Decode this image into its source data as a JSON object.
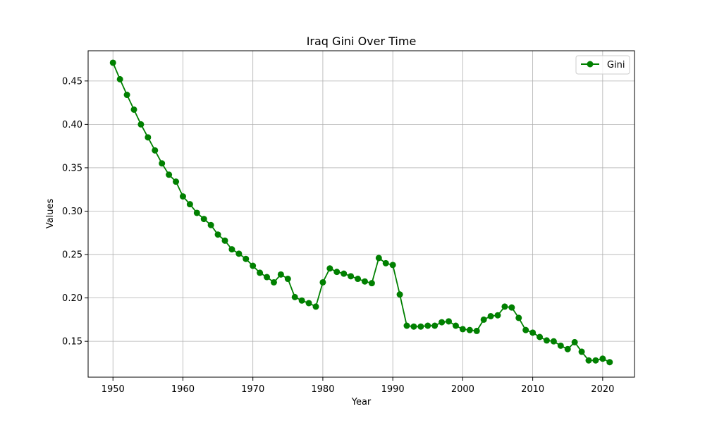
{
  "chart_data": {
    "type": "line",
    "title": "Iraq Gini Over Time",
    "xlabel": "Year",
    "ylabel": "Values",
    "xlim": [
      1946.45,
      2024.55
    ],
    "ylim": [
      0.1087,
      0.4848
    ],
    "x_ticks": [
      1950,
      1960,
      1970,
      1980,
      1990,
      2000,
      2010,
      2020
    ],
    "y_ticks": [
      0.15,
      0.2,
      0.25,
      0.3,
      0.35,
      0.4,
      0.45
    ],
    "y_tick_labels": [
      "0.15",
      "0.20",
      "0.25",
      "0.30",
      "0.35",
      "0.40",
      "0.45"
    ],
    "grid": true,
    "legend_position": "top-right",
    "series": [
      {
        "name": "Gini",
        "color": "#008000",
        "marker": "circle",
        "x": [
          1950,
          1951,
          1952,
          1953,
          1954,
          1955,
          1956,
          1957,
          1958,
          1959,
          1960,
          1961,
          1962,
          1963,
          1964,
          1965,
          1966,
          1967,
          1968,
          1969,
          1970,
          1971,
          1972,
          1973,
          1974,
          1975,
          1976,
          1977,
          1978,
          1979,
          1980,
          1981,
          1982,
          1983,
          1984,
          1985,
          1986,
          1987,
          1988,
          1989,
          1990,
          1991,
          1992,
          1993,
          1994,
          1995,
          1996,
          1997,
          1998,
          1999,
          2000,
          2001,
          2002,
          2003,
          2004,
          2005,
          2006,
          2007,
          2008,
          2009,
          2010,
          2011,
          2012,
          2013,
          2014,
          2015,
          2016,
          2017,
          2018,
          2019,
          2020,
          2021
        ],
        "values": [
          0.471,
          0.452,
          0.434,
          0.417,
          0.4,
          0.385,
          0.37,
          0.355,
          0.342,
          0.334,
          0.317,
          0.308,
          0.298,
          0.291,
          0.284,
          0.273,
          0.266,
          0.256,
          0.251,
          0.245,
          0.237,
          0.229,
          0.224,
          0.218,
          0.227,
          0.222,
          0.201,
          0.197,
          0.194,
          0.19,
          0.218,
          0.234,
          0.23,
          0.228,
          0.225,
          0.222,
          0.219,
          0.217,
          0.246,
          0.24,
          0.238,
          0.204,
          0.168,
          0.167,
          0.167,
          0.168,
          0.168,
          0.172,
          0.173,
          0.168,
          0.164,
          0.163,
          0.162,
          0.175,
          0.179,
          0.18,
          0.19,
          0.189,
          0.177,
          0.163,
          0.16,
          0.155,
          0.151,
          0.15,
          0.145,
          0.141,
          0.149,
          0.138,
          0.128,
          0.128,
          0.13,
          0.126
        ]
      }
    ]
  }
}
